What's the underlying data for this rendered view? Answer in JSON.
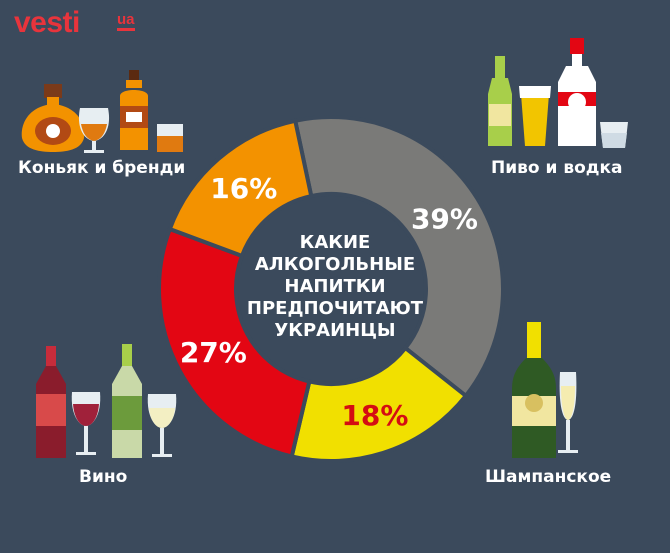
{
  "brand": {
    "name": "vesti",
    "suffix": "ua",
    "color": "#e8343c"
  },
  "center_title": [
    "КАКИЕ",
    "АЛКОГОЛЬНЫЕ",
    "НАПИТКИ",
    "ПРЕДПОЧИТАЮТ",
    "УКРАИНЦЫ"
  ],
  "chart_data": {
    "type": "pie",
    "style": "donut",
    "categories": [
      "Пиво и водка",
      "Шампанское",
      "Вино",
      "Коньяк и бренди"
    ],
    "values": [
      39,
      18,
      27,
      16
    ],
    "labels": [
      "39%",
      "18%",
      "27%",
      "16%"
    ],
    "colors": [
      "#7a7a78",
      "#f1e000",
      "#e30613",
      "#f39200"
    ],
    "label_colors": [
      "#ffffff",
      "#d40d12",
      "#ffffff",
      "#ffffff"
    ]
  },
  "icons": [
    "cognac-bottle-icon",
    "snifter-glass-icon",
    "whiskey-bottle-icon",
    "whiskey-glass-icon",
    "beer-bottle-icon",
    "beer-glass-icon",
    "vodka-bottle-icon",
    "shot-glass-icon",
    "red-wine-bottle-icon",
    "red-wine-glass-icon",
    "white-wine-bottle-icon",
    "white-wine-glass-icon",
    "champagne-bottle-icon",
    "champagne-glass-icon"
  ]
}
